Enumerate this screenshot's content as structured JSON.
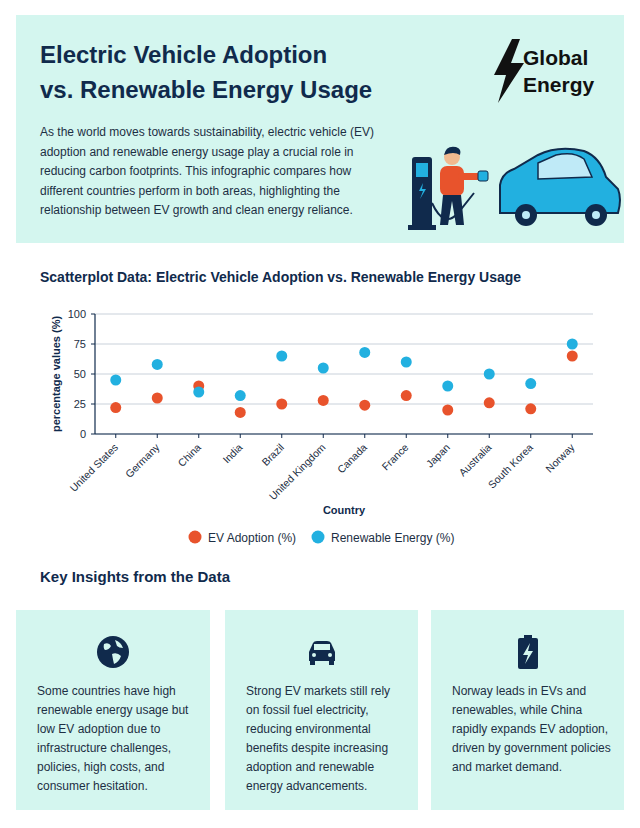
{
  "page": {
    "header": {
      "title": [
        "Electric Vehicle Adoption",
        "vs. Renewable Energy Usage"
      ],
      "logo": [
        "Global",
        "Energy"
      ],
      "intro": "As the world moves towards sustainability, electric vehicle (EV) adoption and renewable energy usage play a crucial role in reducing carbon footprints. This infographic compares how different countries perform in both areas, highlighting the relationship between EV growth and clean energy reliance."
    },
    "insights_title": "Key Insights from the Data",
    "insights": [
      "Some countries have high renewable energy usage but low EV adoption due to infrastructure challenges, policies, high costs, and consumer hesitation.",
      "Strong EV markets still rely on fossil fuel electricity, reducing environmental benefits despite increasing adoption and renewable energy advancements.",
      "Norway leads in EVs and renewables, while China rapidly expands EV adoption, driven by government policies and market demand."
    ]
  },
  "chart_data": {
    "type": "scatter",
    "title": "Scatterplot Data: Electric Vehicle Adoption vs. Renewable Energy Usage",
    "x_label": "Country",
    "y_label": "percentage values (%)",
    "categories": [
      "United States",
      "Germany",
      "China",
      "India",
      "Brazil",
      "United Kingdom",
      "Canada",
      "France",
      "Japan",
      "Australia",
      "South Korea",
      "Norway"
    ],
    "series": [
      {
        "name": "EV Adoption (%)",
        "color": "#e8532c",
        "marker": "circle",
        "values": [
          22,
          30,
          40,
          18,
          25,
          28,
          24,
          32,
          20,
          26,
          21,
          65
        ]
      },
      {
        "name": "Renewable Energy (%)",
        "color": "#22b0e0",
        "marker": "circle",
        "values": [
          45,
          58,
          35,
          32,
          65,
          55,
          68,
          60,
          40,
          50,
          42,
          75
        ]
      }
    ],
    "ylim": [
      0,
      100
    ],
    "yticks": [
      0,
      25,
      50,
      75,
      100
    ],
    "grid": true,
    "legend": "bottom"
  }
}
